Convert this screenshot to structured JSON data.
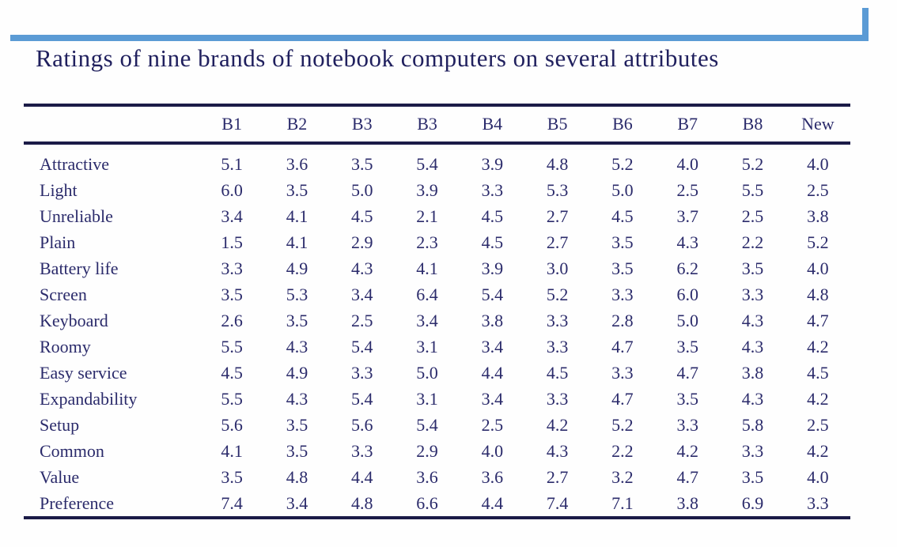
{
  "title": "Ratings of nine brands of notebook computers on several attributes",
  "colors": {
    "accent_bar": "#5B9BD5",
    "table_rule": "#1b1b47",
    "text": "#2b2b6b"
  },
  "table": {
    "columns": [
      "B1",
      "B2",
      "B3",
      "B3",
      "B4",
      "B5",
      "B6",
      "B7",
      "B8",
      "New"
    ],
    "rows": [
      {
        "label": "Attractive",
        "values": [
          "5.1",
          "3.6",
          "3.5",
          "5.4",
          "3.9",
          "4.8",
          "5.2",
          "4.0",
          "5.2",
          "4.0"
        ]
      },
      {
        "label": "Light",
        "values": [
          "6.0",
          "3.5",
          "5.0",
          "3.9",
          "3.3",
          "5.3",
          "5.0",
          "2.5",
          "5.5",
          "2.5"
        ]
      },
      {
        "label": "Unreliable",
        "values": [
          "3.4",
          "4.1",
          "4.5",
          "2.1",
          "4.5",
          "2.7",
          "4.5",
          "3.7",
          "2.5",
          "3.8"
        ]
      },
      {
        "label": "Plain",
        "values": [
          "1.5",
          "4.1",
          "2.9",
          "2.3",
          "4.5",
          "2.7",
          "3.5",
          "4.3",
          "2.2",
          "5.2"
        ]
      },
      {
        "label": "Battery life",
        "values": [
          "3.3",
          "4.9",
          "4.3",
          "4.1",
          "3.9",
          "3.0",
          "3.5",
          "6.2",
          "3.5",
          "4.0"
        ]
      },
      {
        "label": "Screen",
        "values": [
          "3.5",
          "5.3",
          "3.4",
          "6.4",
          "5.4",
          "5.2",
          "3.3",
          "6.0",
          "3.3",
          "4.8"
        ]
      },
      {
        "label": "Keyboard",
        "values": [
          "2.6",
          "3.5",
          "2.5",
          "3.4",
          "3.8",
          "3.3",
          "2.8",
          "5.0",
          "4.3",
          "4.7"
        ]
      },
      {
        "label": "Roomy",
        "values": [
          "5.5",
          "4.3",
          "5.4",
          "3.1",
          "3.4",
          "3.3",
          "4.7",
          "3.5",
          "4.3",
          "4.2"
        ]
      },
      {
        "label": "Easy service",
        "values": [
          "4.5",
          "4.9",
          "3.3",
          "5.0",
          "4.4",
          "4.5",
          "3.3",
          "4.7",
          "3.8",
          "4.5"
        ]
      },
      {
        "label": "Expandability",
        "values": [
          "5.5",
          "4.3",
          "5.4",
          "3.1",
          "3.4",
          "3.3",
          "4.7",
          "3.5",
          "4.3",
          "4.2"
        ]
      },
      {
        "label": "Setup",
        "values": [
          "5.6",
          "3.5",
          "5.6",
          "5.4",
          "2.5",
          "4.2",
          "5.2",
          "3.3",
          "5.8",
          "2.5"
        ]
      },
      {
        "label": "Common",
        "values": [
          "4.1",
          "3.5",
          "3.3",
          "2.9",
          "4.0",
          "4.3",
          "2.2",
          "4.2",
          "3.3",
          "4.2"
        ]
      },
      {
        "label": "Value",
        "values": [
          "3.5",
          "4.8",
          "4.4",
          "3.6",
          "3.6",
          "2.7",
          "3.2",
          "4.7",
          "3.5",
          "4.0"
        ]
      },
      {
        "label": "Preference",
        "values": [
          "7.4",
          "3.4",
          "4.8",
          "6.6",
          "4.4",
          "7.4",
          "7.1",
          "3.8",
          "6.9",
          "3.3"
        ]
      }
    ]
  }
}
